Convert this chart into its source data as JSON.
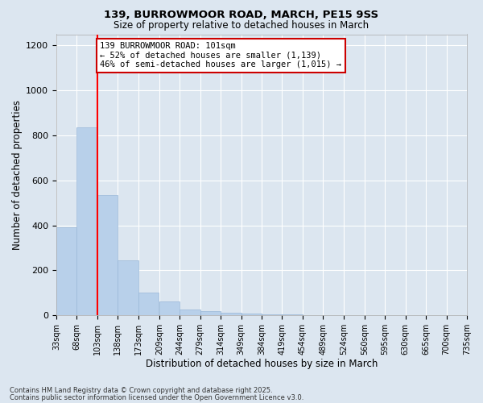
{
  "title1": "139, BURROWMOOR ROAD, MARCH, PE15 9SS",
  "title2": "Size of property relative to detached houses in March",
  "xlabel": "Distribution of detached houses by size in March",
  "ylabel": "Number of detached properties",
  "bin_left_edges": [
    33,
    68,
    103,
    138,
    173,
    209,
    244,
    279,
    314,
    349,
    384,
    419,
    454,
    489,
    524,
    560,
    595,
    630,
    665,
    700
  ],
  "bin_width": 35,
  "bar_heights": [
    390,
    835,
    535,
    245,
    100,
    60,
    25,
    20,
    10,
    8,
    5,
    3,
    2,
    2,
    1,
    1,
    1,
    1,
    1,
    1
  ],
  "tick_labels": [
    "33sqm",
    "68sqm",
    "103sqm",
    "138sqm",
    "173sqm",
    "209sqm",
    "244sqm",
    "279sqm",
    "314sqm",
    "349sqm",
    "384sqm",
    "419sqm",
    "454sqm",
    "489sqm",
    "524sqm",
    "560sqm",
    "595sqm",
    "630sqm",
    "665sqm",
    "700sqm",
    "735sqm"
  ],
  "bar_color": "#b8d0ea",
  "bar_edge_color": "#9ab8d8",
  "grid_color": "#ffffff",
  "bg_color": "#dce6f0",
  "red_line_x": 103,
  "annotation_text": "139 BURROWMOOR ROAD: 101sqm\n← 52% of detached houses are smaller (1,139)\n46% of semi-detached houses are larger (1,015) →",
  "annotation_box_color": "#ffffff",
  "annotation_box_edge": "#cc0000",
  "ylim": [
    0,
    1250
  ],
  "yticks": [
    0,
    200,
    400,
    600,
    800,
    1000,
    1200
  ],
  "footer1": "Contains HM Land Registry data © Crown copyright and database right 2025.",
  "footer2": "Contains public sector information licensed under the Open Government Licence v3.0."
}
